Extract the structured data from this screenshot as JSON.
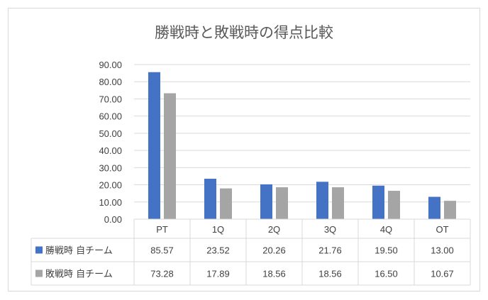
{
  "chart_data": {
    "type": "bar",
    "title": "勝戦時と敗戦時の得点比較",
    "categories": [
      "PT",
      "1Q",
      "2Q",
      "3Q",
      "4Q",
      "OT"
    ],
    "ylim": [
      0,
      90
    ],
    "yticks": [
      "0.00",
      "10.00",
      "20.00",
      "30.00",
      "40.00",
      "50.00",
      "60.00",
      "70.00",
      "80.00",
      "90.00"
    ],
    "grid": true,
    "legend": "data-table",
    "series": [
      {
        "name": "勝戦時 自チーム",
        "color": "#4472c4",
        "values": [
          85.57,
          23.52,
          20.26,
          21.76,
          19.5,
          13.0
        ],
        "labels": [
          "85.57",
          "23.52",
          "20.26",
          "21.76",
          "19.50",
          "13.00"
        ]
      },
      {
        "name": "敗戦時 自チーム",
        "color": "#a5a5a5",
        "values": [
          73.28,
          17.89,
          18.56,
          18.56,
          16.5,
          10.67
        ],
        "labels": [
          "73.28",
          "17.89",
          "18.56",
          "18.56",
          "16.50",
          "10.67"
        ]
      }
    ]
  }
}
